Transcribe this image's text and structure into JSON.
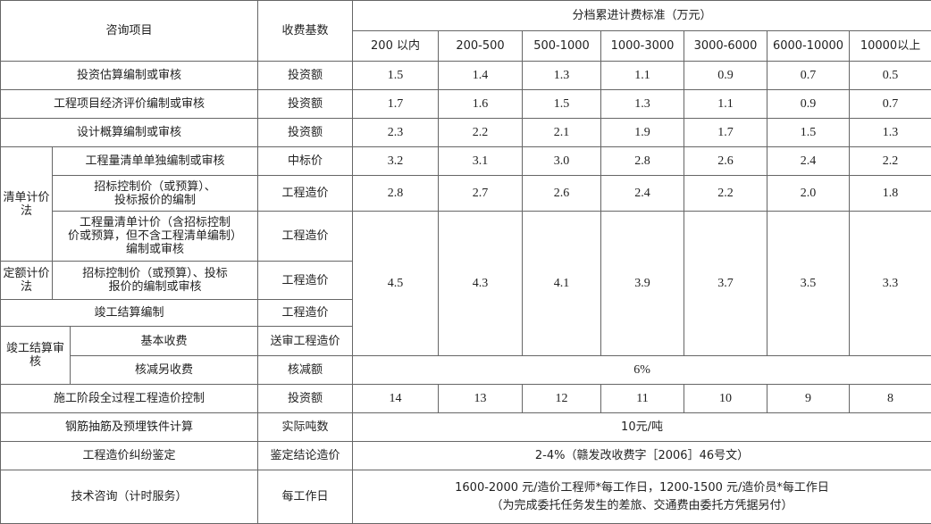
{
  "header": {
    "item": "咨询项目",
    "base": "收费基数",
    "tiers_title": "分档累进计费标准（万元）",
    "tiers": [
      "200 以内",
      "200-500",
      "500-1000",
      "1000-3000",
      "3000-6000",
      "6000-10000",
      "10000以上"
    ]
  },
  "rows": [
    {
      "item": "投资估算编制或审核",
      "base": "投资额",
      "values": [
        "1.5",
        "1.4",
        "1.3",
        "1.1",
        "0.9",
        "0.7",
        "0.5"
      ]
    },
    {
      "item": "工程项目经济评价编制或审核",
      "base": "投资额",
      "values": [
        "1.7",
        "1.6",
        "1.5",
        "1.3",
        "1.1",
        "0.9",
        "0.7"
      ]
    },
    {
      "item": "设计概算编制或审核",
      "base": "投资额",
      "values": [
        "2.3",
        "2.2",
        "2.1",
        "1.9",
        "1.7",
        "1.5",
        "1.3"
      ]
    },
    {
      "group": "清单计价法",
      "item": "工程量清单单独编制或审核",
      "base": "中标价",
      "values": [
        "3.2",
        "3.1",
        "3.0",
        "2.8",
        "2.6",
        "2.4",
        "2.2"
      ]
    },
    {
      "item_line1": "招标控制价（或预算）、",
      "item_line2": "投标报价的编制",
      "base": "工程造价",
      "values": [
        "2.8",
        "2.7",
        "2.6",
        "2.4",
        "2.2",
        "2.0",
        "1.8"
      ]
    },
    {
      "item_line1": "工程量清单计价（含招标控制",
      "item_line2": "价或预算，但不含工程清单编制）",
      "item_line3": "编制或审核",
      "base": "工程造价"
    },
    {
      "group": "定额计价法",
      "item_line1": "招标控制价（或预算）、投标",
      "item_line2": "报价的编制或审核",
      "base": "工程造价"
    },
    {
      "item": "竣工结算编制",
      "base": "工程造价"
    },
    {
      "group": "竣工结算审核",
      "item": "基本收费",
      "base": "送审工程造价"
    },
    {
      "item": "核减另收费",
      "base": "核减额",
      "value": "6%"
    },
    {
      "item": "施工阶段全过程工程造价控制",
      "base": "投资额",
      "values": [
        "14",
        "13",
        "12",
        "11",
        "10",
        "9",
        "8"
      ]
    },
    {
      "item": "钢筋抽筋及预埋铁件计算",
      "base": "实际吨数",
      "value": "10元/吨"
    },
    {
      "item": "工程造价纠纷鉴定",
      "base": "鉴定结论造价",
      "value": "2-4%（赣发改收费字［2006］46号文）"
    },
    {
      "item": "技术咨询（计时服务）",
      "base": "每工作日",
      "value_line1": "1600-2000 元/造价工程师*每工作日，1200-1500 元/造价员*每工作日",
      "value_line2": "（为完成委托任务发生的差旅、交通费由委托方凭据另付）"
    }
  ],
  "merged_values": [
    "4.5",
    "4.3",
    "4.1",
    "3.9",
    "3.7",
    "3.5",
    "3.3"
  ]
}
